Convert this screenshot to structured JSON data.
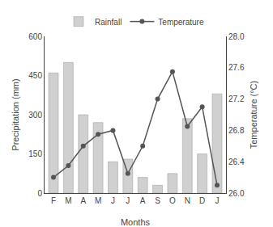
{
  "chart_data": {
    "type": "bar",
    "categories": [
      "F",
      "M",
      "A",
      "M",
      "J",
      "J",
      "A",
      "S",
      "O",
      "N",
      "D",
      "J"
    ],
    "series": [
      {
        "name": "Rainfall",
        "type": "bar",
        "color": "#d0d0d0",
        "values": [
          460,
          500,
          300,
          270,
          120,
          130,
          60,
          30,
          75,
          285,
          150,
          380
        ]
      },
      {
        "name": "Temperature",
        "type": "line",
        "color": "#555555",
        "marker": "circle",
        "axis": "y2",
        "values": [
          26.2,
          26.35,
          26.6,
          26.75,
          26.8,
          26.25,
          26.6,
          27.2,
          27.55,
          26.85,
          27.1,
          26.1
        ]
      }
    ],
    "xlabel": "Months",
    "ylabel": "Precipitation (mm)",
    "y2label": "Temperature (°C)",
    "ylim": [
      0,
      600
    ],
    "yticks": [
      0,
      150,
      300,
      450,
      600
    ],
    "y2lim": [
      26.0,
      28.0
    ],
    "y2ticks": [
      {
        "value": 26.0,
        "label": "26.0"
      },
      26.4,
      26.8,
      27.2,
      27.6,
      {
        "value": 28.0,
        "label": "28.0"
      }
    ],
    "legend": "top",
    "grid": false
  }
}
